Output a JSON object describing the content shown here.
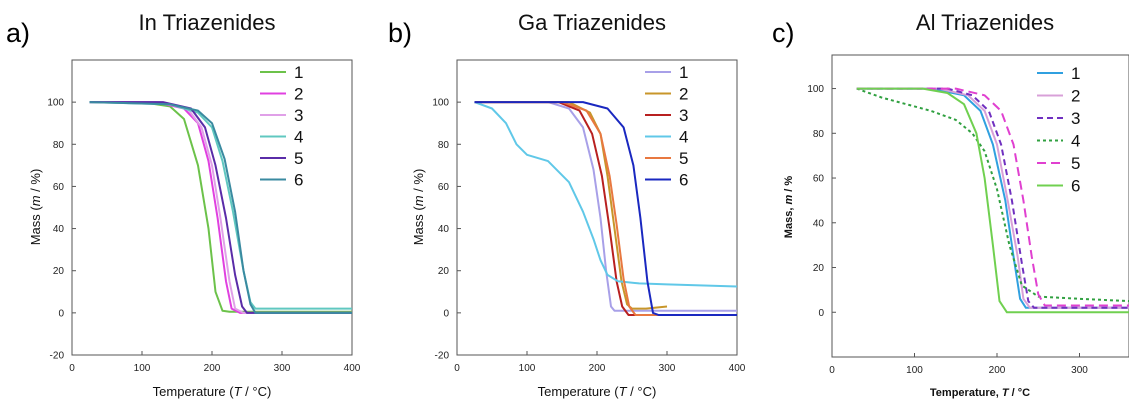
{
  "panels": [
    {
      "label": "a)",
      "title": "In Triazenides",
      "xlabel": {
        "before": "Temperature (",
        "var": "T",
        "after": " / °C)"
      },
      "ylabel": {
        "before": "Mass (",
        "var": "m",
        "after": " / %)"
      }
    },
    {
      "label": "b)",
      "title": "Ga Triazenides",
      "xlabel": {
        "before": "Temperature (",
        "var": "T",
        "after": " / °C)"
      },
      "ylabel": {
        "before": "Mass (",
        "var": "m",
        "after": " / %)"
      }
    },
    {
      "label": "c)",
      "title": "Al Triazenides",
      "xlabel": {
        "before": "Temperature, ",
        "var": "T",
        "after": " / °C"
      },
      "ylabel": {
        "before": "Mass, ",
        "var": "m",
        "after": " / %"
      }
    }
  ],
  "chart_data": [
    {
      "type": "line",
      "title": "In Triazenides",
      "xlabel": "Temperature (T / °C)",
      "ylabel": "Mass (m / %)",
      "xlim": [
        0,
        400
      ],
      "ylim": [
        -20,
        120
      ],
      "xticks": [
        0,
        100,
        200,
        300,
        400
      ],
      "yticks": [
        -20,
        0,
        20,
        40,
        60,
        80,
        100
      ],
      "grid": false,
      "legend": "top-right",
      "series": [
        {
          "name": "1",
          "color": "#6cc24a",
          "dash": "",
          "x": [
            25,
            100,
            140,
            160,
            180,
            195,
            205,
            215,
            225,
            400
          ],
          "y": [
            100,
            100,
            98,
            92,
            70,
            40,
            10,
            1,
            0.5,
            0.5
          ]
        },
        {
          "name": "2",
          "color": "#e040e0",
          "dash": "",
          "x": [
            25,
            120,
            160,
            180,
            195,
            208,
            220,
            228,
            240,
            400
          ],
          "y": [
            100,
            100,
            97,
            90,
            72,
            45,
            15,
            2,
            0,
            0
          ]
        },
        {
          "name": "3",
          "color": "#e0a0e8",
          "dash": "",
          "x": [
            25,
            125,
            165,
            185,
            200,
            212,
            225,
            233,
            245,
            400
          ],
          "y": [
            100,
            100,
            97,
            88,
            70,
            45,
            15,
            2,
            0,
            0
          ]
        },
        {
          "name": "4",
          "color": "#60c8c0",
          "dash": "",
          "x": [
            25,
            140,
            180,
            200,
            215,
            230,
            245,
            255,
            262,
            400
          ],
          "y": [
            100,
            99,
            95,
            88,
            72,
            48,
            20,
            5,
            2,
            2
          ]
        },
        {
          "name": "5",
          "color": "#5a2ca8",
          "dash": "",
          "x": [
            25,
            130,
            170,
            190,
            205,
            220,
            233,
            243,
            250,
            400
          ],
          "y": [
            100,
            100,
            97,
            88,
            70,
            45,
            18,
            3,
            0,
            0
          ]
        },
        {
          "name": "6",
          "color": "#3a8aa0",
          "dash": "",
          "x": [
            25,
            140,
            180,
            200,
            218,
            233,
            245,
            255,
            262,
            400
          ],
          "y": [
            100,
            99,
            96,
            90,
            73,
            48,
            20,
            4,
            0,
            0
          ]
        }
      ]
    },
    {
      "type": "line",
      "title": "Ga Triazenides",
      "xlabel": "Temperature (T / °C)",
      "ylabel": "Mass (m / %)",
      "xlim": [
        0,
        400
      ],
      "ylim": [
        -20,
        120
      ],
      "xticks": [
        0,
        100,
        200,
        300,
        400
      ],
      "yticks": [
        -20,
        0,
        20,
        40,
        60,
        80,
        100
      ],
      "grid": false,
      "legend": "top-right",
      "series": [
        {
          "name": "1",
          "color": "#a8a0e8",
          "dash": "",
          "x": [
            25,
            130,
            160,
            180,
            195,
            205,
            213,
            220,
            225,
            400
          ],
          "y": [
            100,
            100,
            97,
            88,
            68,
            45,
            20,
            3,
            1,
            1
          ]
        },
        {
          "name": "2",
          "color": "#c8962a",
          "dash": "",
          "x": [
            25,
            160,
            190,
            205,
            215,
            225,
            235,
            243,
            250,
            270,
            300
          ],
          "y": [
            100,
            100,
            95,
            85,
            65,
            40,
            15,
            4,
            2,
            2,
            3
          ]
        },
        {
          "name": "3",
          "color": "#b82020",
          "dash": "",
          "x": [
            25,
            145,
            175,
            193,
            207,
            218,
            228,
            236,
            245,
            400
          ],
          "y": [
            100,
            100,
            96,
            85,
            65,
            40,
            15,
            3,
            -1,
            -1
          ]
        },
        {
          "name": "4",
          "color": "#60c8e8",
          "dash": "",
          "x": [
            25,
            50,
            70,
            85,
            100,
            130,
            160,
            180,
            195,
            205,
            215,
            230,
            260,
            300,
            400
          ],
          "y": [
            100,
            97,
            90,
            80,
            75,
            72,
            62,
            48,
            35,
            25,
            18,
            15,
            14,
            13.5,
            12.5
          ]
        },
        {
          "name": "5",
          "color": "#e87840",
          "dash": "",
          "x": [
            25,
            150,
            185,
            205,
            218,
            228,
            238,
            246,
            255,
            400
          ],
          "y": [
            100,
            100,
            96,
            85,
            65,
            42,
            16,
            3,
            -1,
            -1
          ]
        },
        {
          "name": "6",
          "color": "#1a28c0",
          "dash": "",
          "x": [
            25,
            180,
            215,
            238,
            252,
            262,
            272,
            280,
            288,
            400
          ],
          "y": [
            100,
            100,
            97,
            88,
            70,
            45,
            15,
            0,
            -1,
            -1
          ]
        }
      ]
    },
    {
      "type": "line",
      "title": "Al Triazenides",
      "xlabel": "Temperature, T / °C",
      "ylabel": "Mass, m / %",
      "xlim": [
        0,
        360
      ],
      "ylim": [
        -20,
        115
      ],
      "xticks": [
        0,
        100,
        200,
        300
      ],
      "yticks": [
        0,
        20,
        40,
        60,
        80,
        100
      ],
      "grid": false,
      "legend": "top-right",
      "series": [
        {
          "name": "1",
          "color": "#30a0e0",
          "dash": "",
          "x": [
            30,
            120,
            160,
            180,
            195,
            210,
            220,
            228,
            235,
            360
          ],
          "y": [
            100,
            100,
            97,
            90,
            75,
            50,
            25,
            6,
            2,
            2
          ]
        },
        {
          "name": "2",
          "color": "#d8a0d8",
          "dash": "",
          "x": [
            30,
            130,
            165,
            185,
            200,
            213,
            225,
            232,
            240,
            360
          ],
          "y": [
            100,
            100,
            97,
            90,
            75,
            50,
            25,
            6,
            2,
            2
          ]
        },
        {
          "name": "3",
          "color": "#7030c0",
          "dash": "6 4",
          "x": [
            30,
            140,
            170,
            190,
            205,
            218,
            230,
            238,
            245,
            360
          ],
          "y": [
            100,
            100,
            97,
            90,
            75,
            50,
            22,
            5,
            2,
            2
          ]
        },
        {
          "name": "4",
          "color": "#30a040",
          "dash": "3 3",
          "x": [
            30,
            60,
            90,
            120,
            150,
            170,
            185,
            200,
            215,
            230,
            250,
            300,
            360
          ],
          "y": [
            100,
            96,
            93,
            90,
            86,
            80,
            72,
            55,
            30,
            12,
            7,
            6,
            5
          ]
        },
        {
          "name": "5",
          "color": "#e040d0",
          "dash": "9 5",
          "x": [
            30,
            150,
            185,
            205,
            220,
            232,
            242,
            250,
            258,
            360
          ],
          "y": [
            100,
            100,
            97,
            90,
            75,
            50,
            25,
            8,
            3,
            3
          ]
        },
        {
          "name": "6",
          "color": "#70d050",
          "dash": "",
          "x": [
            30,
            110,
            140,
            160,
            175,
            185,
            195,
            203,
            212,
            360
          ],
          "y": [
            100,
            100,
            98,
            93,
            80,
            60,
            30,
            5,
            0,
            0
          ]
        }
      ]
    }
  ]
}
